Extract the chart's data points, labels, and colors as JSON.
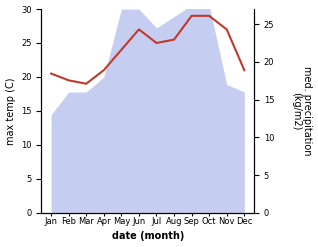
{
  "months": [
    "Jan",
    "Feb",
    "Mar",
    "Apr",
    "May",
    "Jun",
    "Jul",
    "Aug",
    "Sep",
    "Oct",
    "Nov",
    "Dec"
  ],
  "temperature": [
    20.5,
    19.5,
    19.0,
    21.0,
    24.0,
    27.0,
    25.0,
    25.5,
    29.0,
    29.0,
    27.0,
    21.0
  ],
  "precipitation": [
    13.0,
    16.0,
    16.0,
    18.0,
    27.0,
    27.0,
    24.5,
    26.0,
    27.5,
    27.5,
    17.0,
    16.0
  ],
  "temp_color": "#c0392b",
  "precip_fill_color": "#c5cef0",
  "xlabel": "date (month)",
  "ylabel_left": "max temp (C)",
  "ylabel_right": "med. precipitation\n(kg/m2)",
  "ylim_left": [
    0,
    30
  ],
  "ylim_right": [
    0,
    27
  ],
  "yticks_left": [
    0,
    5,
    10,
    15,
    20,
    25,
    30
  ],
  "yticks_right": [
    0,
    5,
    10,
    15,
    20,
    25
  ],
  "figsize": [
    3.18,
    2.47
  ],
  "dpi": 100
}
